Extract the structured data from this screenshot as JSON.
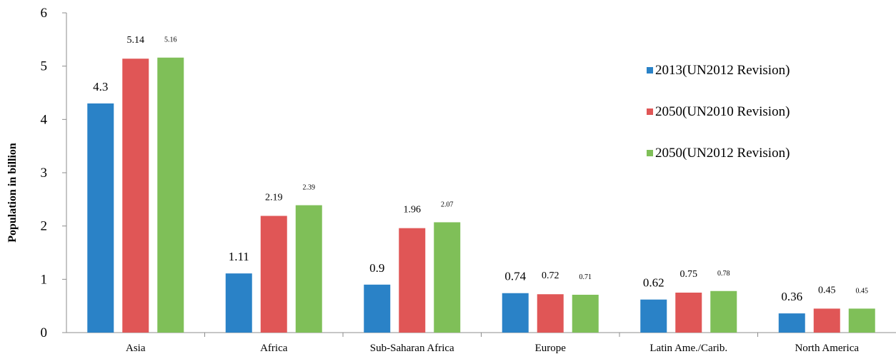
{
  "chart_data": {
    "type": "bar",
    "title": "",
    "xlabel": "",
    "ylabel": "Population in billion",
    "ylim": [
      0,
      6
    ],
    "yticks": [
      "0",
      "1",
      "2",
      "3",
      "4",
      "5",
      "6"
    ],
    "grid": false,
    "legend_position": "right",
    "categories": [
      "Asia",
      "Africa",
      "Sub-Saharan Africa",
      "Europe",
      "Latin Ame./Carib.",
      "North America"
    ],
    "series": [
      {
        "name": "2013(UN2012 Revision)",
        "color": "#2a82c7",
        "values": [
          4.3,
          1.11,
          0.9,
          0.74,
          0.62,
          0.36
        ],
        "labels": [
          "4.3",
          "1.11",
          "0.9",
          "0.74",
          "0.62",
          "0.36"
        ]
      },
      {
        "name": "2050(UN2010 Revision)",
        "color": "#e05656",
        "values": [
          5.14,
          2.19,
          1.96,
          0.72,
          0.75,
          0.45
        ],
        "labels": [
          "5.14",
          "2.19",
          "1.96",
          "0.72",
          "0.75",
          "0.45"
        ]
      },
      {
        "name": "2050(UN2012 Revision)",
        "color": "#7fbf58",
        "values": [
          5.16,
          2.39,
          2.07,
          0.71,
          0.78,
          0.45
        ],
        "labels": [
          "5.16",
          "2.39",
          "2.07",
          "0.71",
          "0.78",
          "0.45"
        ]
      }
    ]
  }
}
